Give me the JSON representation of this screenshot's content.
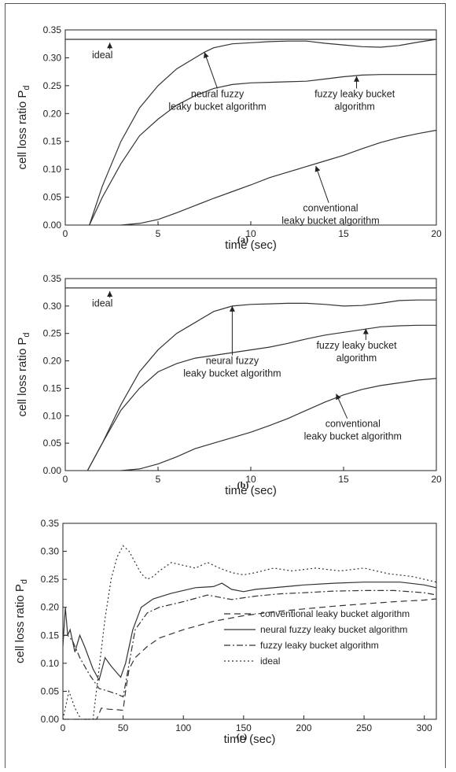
{
  "chart_data": [
    {
      "type": "line",
      "caption": "(a)",
      "xlabel": "time (sec)",
      "ylabel": "cell loss ratio P",
      "ylabel_sub": "d",
      "xlim": [
        0,
        20
      ],
      "ylim": [
        0,
        0.35
      ],
      "xticks": [
        "0",
        "5",
        "10",
        "15",
        "20"
      ],
      "yticks": [
        "0.00",
        "0.05",
        "0.10",
        "0.15",
        "0.20",
        "0.25",
        "0.30",
        "0.35"
      ],
      "grid": false,
      "series": [
        {
          "name": "ideal",
          "x": [
            0,
            20
          ],
          "y": [
            0.333,
            0.333
          ]
        },
        {
          "name": "neural fuzzy leaky bucket algorithm",
          "x": [
            1.3,
            2,
            3,
            4,
            5,
            6,
            7,
            7.5,
            8,
            9,
            10,
            11,
            12,
            13,
            14,
            15,
            16,
            17,
            18,
            19,
            20
          ],
          "y": [
            0.0,
            0.07,
            0.15,
            0.21,
            0.25,
            0.28,
            0.3,
            0.31,
            0.318,
            0.325,
            0.327,
            0.329,
            0.33,
            0.33,
            0.326,
            0.323,
            0.32,
            0.319,
            0.322,
            0.328,
            0.333
          ]
        },
        {
          "name": "fuzzy leaky bucket algorithm",
          "x": [
            1.3,
            2,
            3,
            4,
            5,
            6,
            7,
            8,
            9,
            10,
            11,
            12,
            13,
            14,
            15,
            16,
            17,
            18,
            19,
            20
          ],
          "y": [
            0.0,
            0.05,
            0.11,
            0.16,
            0.19,
            0.215,
            0.232,
            0.245,
            0.252,
            0.255,
            0.256,
            0.257,
            0.258,
            0.262,
            0.266,
            0.269,
            0.27,
            0.27,
            0.27,
            0.27
          ]
        },
        {
          "name": "conventional leaky bucket algorithm",
          "x": [
            3,
            4,
            5,
            6,
            7,
            8,
            9,
            10,
            11,
            12,
            13,
            14,
            15,
            16,
            17,
            18,
            19,
            20
          ],
          "y": [
            0.0,
            0.003,
            0.01,
            0.022,
            0.035,
            0.048,
            0.06,
            0.072,
            0.085,
            0.095,
            0.105,
            0.115,
            0.125,
            0.137,
            0.148,
            0.157,
            0.164,
            0.17
          ]
        }
      ],
      "annotations": [
        {
          "text": [
            "ideal"
          ],
          "tx": 2.0,
          "ty": 0.305,
          "ax": 2.4,
          "ay": 0.327,
          "lx": 2.4,
          "ly": 0.315
        },
        {
          "text": [
            "neural fuzzy",
            "leaky bucket algorithm"
          ],
          "tx": 8.2,
          "ty": 0.235,
          "ax": 7.5,
          "ay": 0.31,
          "lx": 8.2,
          "ly": 0.245
        },
        {
          "text": [
            "fuzzy leaky bucket",
            "algorithm"
          ],
          "tx": 15.6,
          "ty": 0.235,
          "ax": 15.7,
          "ay": 0.267,
          "lx": 15.7,
          "ly": 0.245
        },
        {
          "text": [
            "conventional",
            "leaky bucket algorithm"
          ],
          "tx": 14.3,
          "ty": 0.03,
          "ax": 13.5,
          "ay": 0.106,
          "lx": 14.2,
          "ly": 0.04
        }
      ]
    },
    {
      "type": "line",
      "caption": "(b)",
      "xlabel": "time (sec)",
      "ylabel": "cell loss ratio P",
      "ylabel_sub": "d",
      "xlim": [
        0,
        20
      ],
      "ylim": [
        0,
        0.35
      ],
      "xticks": [
        "0",
        "5",
        "10",
        "15",
        "20"
      ],
      "yticks": [
        "0.00",
        "0.05",
        "0.10",
        "0.15",
        "0.20",
        "0.25",
        "0.30",
        "0.35"
      ],
      "grid": false,
      "series": [
        {
          "name": "ideal",
          "x": [
            0,
            20
          ],
          "y": [
            0.333,
            0.333
          ]
        },
        {
          "name": "neural fuzzy leaky bucket algorithm",
          "x": [
            1.2,
            2,
            3,
            4,
            5,
            6,
            7,
            8,
            9,
            10,
            11,
            12,
            13,
            14,
            15,
            16,
            17,
            18,
            19,
            20
          ],
          "y": [
            0.0,
            0.05,
            0.12,
            0.18,
            0.22,
            0.25,
            0.27,
            0.29,
            0.3,
            0.303,
            0.304,
            0.305,
            0.305,
            0.303,
            0.3,
            0.301,
            0.305,
            0.31,
            0.311,
            0.311
          ]
        },
        {
          "name": "fuzzy leaky bucket algorithm",
          "x": [
            1.2,
            2,
            3,
            4,
            5,
            6,
            7,
            8,
            9,
            10,
            11,
            12,
            13,
            14,
            15,
            16,
            17,
            18,
            19,
            20
          ],
          "y": [
            0.0,
            0.05,
            0.11,
            0.15,
            0.18,
            0.195,
            0.205,
            0.21,
            0.215,
            0.22,
            0.225,
            0.232,
            0.24,
            0.247,
            0.252,
            0.257,
            0.262,
            0.264,
            0.265,
            0.265
          ]
        },
        {
          "name": "conventional leaky bucket algorithm",
          "x": [
            3,
            4,
            5,
            6,
            7,
            8,
            9,
            10,
            11,
            12,
            13,
            14,
            15,
            16,
            17,
            18,
            19,
            20
          ],
          "y": [
            0.0,
            0.003,
            0.012,
            0.025,
            0.04,
            0.05,
            0.06,
            0.07,
            0.082,
            0.095,
            0.11,
            0.125,
            0.138,
            0.148,
            0.155,
            0.16,
            0.165,
            0.168
          ]
        }
      ],
      "annotations": [
        {
          "text": [
            "ideal"
          ],
          "tx": 2.0,
          "ty": 0.305,
          "ax": 2.4,
          "ay": 0.327,
          "lx": 2.4,
          "ly": 0.315
        },
        {
          "text": [
            "neural fuzzy",
            "leaky bucket algorithm"
          ],
          "tx": 9.0,
          "ty": 0.2,
          "ax": 9.0,
          "ay": 0.3,
          "lx": 9.0,
          "ly": 0.21
        },
        {
          "text": [
            "fuzzy leaky bucket",
            "algorithm"
          ],
          "tx": 15.7,
          "ty": 0.228,
          "ax": 16.2,
          "ay": 0.259,
          "lx": 16.2,
          "ly": 0.238
        },
        {
          "text": [
            "conventional",
            "leaky bucket algorithm"
          ],
          "tx": 15.5,
          "ty": 0.085,
          "ax": 14.6,
          "ay": 0.14,
          "lx": 15.2,
          "ly": 0.095
        }
      ]
    },
    {
      "type": "line",
      "caption": "(c)",
      "xlabel": "time (sec)",
      "ylabel": "cell loss ratio P",
      "ylabel_sub": "d",
      "xlim": [
        0,
        310
      ],
      "ylim": [
        0,
        0.35
      ],
      "xticks": [
        "0",
        "50",
        "100",
        "150",
        "200",
        "250",
        "300"
      ],
      "yticks": [
        "0.00",
        "0.05",
        "0.10",
        "0.15",
        "0.20",
        "0.25",
        "0.30",
        "0.35"
      ],
      "grid": false,
      "legend": "lower-right",
      "series": [
        {
          "name": "conventional leaky bucket algorithm",
          "dash": "8,5",
          "x": [
            0,
            4,
            8,
            13,
            20,
            28,
            32,
            38,
            45,
            50,
            52,
            55,
            60,
            70,
            80,
            100,
            125,
            150,
            175,
            200,
            225,
            250,
            275,
            300,
            310
          ],
          "y": [
            0.0,
            0.0,
            0.0,
            0.0,
            0.0,
            0.0,
            0.02,
            0.018,
            0.017,
            0.016,
            0.05,
            0.09,
            0.11,
            0.13,
            0.145,
            0.16,
            0.175,
            0.185,
            0.192,
            0.197,
            0.202,
            0.206,
            0.21,
            0.213,
            0.215
          ]
        },
        {
          "name": "neural fuzzy leaky bucket algorithm",
          "dash": "",
          "x": [
            0,
            2,
            4,
            6,
            10,
            14,
            18,
            25,
            30,
            35,
            40,
            48,
            52,
            58,
            65,
            75,
            90,
            110,
            125,
            132,
            140,
            150,
            160,
            180,
            200,
            225,
            250,
            280,
            300,
            310
          ],
          "y": [
            0.13,
            0.2,
            0.15,
            0.16,
            0.12,
            0.15,
            0.13,
            0.09,
            0.07,
            0.11,
            0.095,
            0.075,
            0.1,
            0.16,
            0.2,
            0.215,
            0.225,
            0.235,
            0.237,
            0.243,
            0.232,
            0.228,
            0.232,
            0.236,
            0.24,
            0.243,
            0.245,
            0.245,
            0.24,
            0.235
          ]
        },
        {
          "name": "fuzzy leaky bucket algorithm",
          "dash": "8,3,2,3",
          "x": [
            0,
            4,
            8,
            14,
            22,
            30,
            38,
            45,
            50,
            55,
            60,
            70,
            80,
            100,
            120,
            140,
            160,
            180,
            200,
            225,
            250,
            275,
            300,
            310
          ],
          "y": [
            0.15,
            0.15,
            0.14,
            0.11,
            0.08,
            0.055,
            0.05,
            0.045,
            0.04,
            0.1,
            0.16,
            0.19,
            0.2,
            0.21,
            0.222,
            0.214,
            0.22,
            0.224,
            0.226,
            0.229,
            0.23,
            0.23,
            0.226,
            0.222
          ]
        },
        {
          "name": "ideal",
          "dash": "2,3",
          "x": [
            0,
            5,
            10,
            15,
            20,
            25,
            30,
            35,
            40,
            45,
            50,
            55,
            60,
            65,
            70,
            75,
            80,
            90,
            100,
            110,
            120,
            130,
            140,
            150,
            160,
            175,
            190,
            210,
            230,
            250,
            270,
            290,
            310
          ],
          "y": [
            0.0,
            0.05,
            0.02,
            0.0,
            0.0,
            0.0,
            0.09,
            0.18,
            0.25,
            0.29,
            0.31,
            0.3,
            0.28,
            0.26,
            0.25,
            0.255,
            0.265,
            0.28,
            0.275,
            0.27,
            0.28,
            0.27,
            0.262,
            0.258,
            0.262,
            0.27,
            0.265,
            0.27,
            0.265,
            0.27,
            0.26,
            0.255,
            0.245
          ]
        }
      ]
    }
  ]
}
